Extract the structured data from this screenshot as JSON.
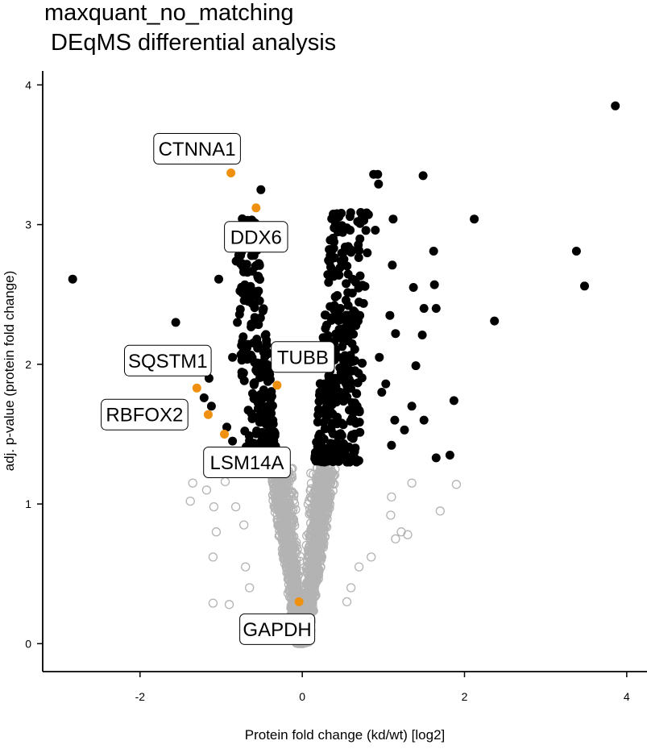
{
  "chart_data": {
    "type": "scatter",
    "title_line1": "maxquant_no_matching",
    "title_line2": " DEqMS differential analysis",
    "xlabel": "Protein fold change (kd/wt) [log2]",
    "ylabel": "adj. p-value (protein fold change)",
    "xlim": [
      -3.2,
      4.25
    ],
    "ylim": [
      -0.2,
      4.1
    ],
    "x_ticks": [
      -2,
      0,
      2,
      4
    ],
    "y_ticks": [
      0,
      1,
      2,
      3,
      4
    ],
    "grid": false,
    "legend": "none",
    "colors": {
      "significant": "#000000",
      "not_significant": "#b3b3b3",
      "highlight": "#f0900f",
      "axis": "#000000"
    },
    "significance_threshold": 1.3,
    "series": [
      {
        "kind": "significant",
        "points": [
          [
            3.86,
            3.85
          ],
          [
            3.38,
            2.81
          ],
          [
            3.48,
            2.56
          ],
          [
            2.12,
            3.04
          ],
          [
            2.37,
            2.31
          ],
          [
            1.87,
            1.74
          ],
          [
            1.62,
            2.81
          ],
          [
            1.63,
            2.57
          ],
          [
            1.82,
            1.35
          ],
          [
            1.65,
            1.33
          ],
          [
            1.49,
            3.35
          ],
          [
            1.5,
            2.4
          ],
          [
            1.65,
            2.4
          ],
          [
            1.37,
            2.55
          ],
          [
            1.4,
            1.99
          ],
          [
            1.35,
            1.7
          ],
          [
            1.5,
            1.6
          ],
          [
            1.26,
            1.53
          ],
          [
            1.48,
            2.21
          ],
          [
            1.12,
            3.04
          ],
          [
            1.11,
            2.71
          ],
          [
            0.93,
            3.36
          ],
          [
            0.88,
            3.36
          ],
          [
            0.94,
            3.29
          ],
          [
            0.9,
            2.96
          ],
          [
            1.08,
            2.35
          ],
          [
            1.15,
            2.22
          ],
          [
            1.03,
            1.86
          ],
          [
            1.1,
            1.42
          ],
          [
            1.14,
            1.6
          ],
          [
            0.95,
            2.05
          ],
          [
            0.98,
            1.8
          ],
          [
            -2.83,
            2.61
          ],
          [
            -1.56,
            2.3
          ],
          [
            -1.03,
            2.61
          ],
          [
            -0.51,
            3.25
          ],
          [
            -0.86,
            2.05
          ],
          [
            -0.8,
            2.3
          ],
          [
            -1.12,
            1.7
          ],
          [
            -1.15,
            1.9
          ],
          [
            -0.93,
            1.55
          ],
          [
            -0.86,
            1.45
          ],
          [
            -1.21,
            1.76
          ]
        ]
      },
      {
        "kind": "not_significant",
        "points": [
          [
            1.9,
            1.14
          ],
          [
            1.7,
            0.95
          ],
          [
            1.3,
            0.78
          ],
          [
            1.22,
            0.8
          ],
          [
            1.15,
            0.75
          ],
          [
            1.09,
            0.92
          ],
          [
            0.85,
            0.62
          ],
          [
            0.7,
            0.55
          ],
          [
            0.6,
            0.4
          ],
          [
            0.55,
            0.3
          ],
          [
            -1.38,
            1.02
          ],
          [
            -1.18,
            1.1
          ],
          [
            -1.09,
            0.98
          ],
          [
            -1.06,
            0.8
          ],
          [
            -1.1,
            0.62
          ],
          [
            -0.9,
            0.28
          ],
          [
            -1.1,
            0.29
          ],
          [
            -0.7,
            0.55
          ],
          [
            -0.65,
            0.4
          ],
          [
            -0.72,
            0.85
          ],
          [
            -0.82,
            0.98
          ],
          [
            -0.05,
            0.0
          ],
          [
            0.0,
            0.02
          ],
          [
            1.1,
            1.05
          ],
          [
            1.35,
            1.15
          ],
          [
            -1.35,
            1.15
          ],
          [
            -0.95,
            1.16
          ]
        ]
      },
      {
        "kind": "highlight",
        "points": [
          [
            -0.88,
            3.37
          ],
          [
            -0.57,
            3.12
          ],
          [
            -0.31,
            1.85
          ],
          [
            -1.3,
            1.83
          ],
          [
            -1.16,
            1.64
          ],
          [
            -0.96,
            1.5
          ],
          [
            -0.04,
            0.3
          ]
        ]
      }
    ],
    "labels": [
      {
        "text": "CTNNA1",
        "x": -0.88,
        "y": 3.37
      },
      {
        "text": "DDX6",
        "x": -0.57,
        "y": 3.12
      },
      {
        "text": "TUBB",
        "x": -0.31,
        "y": 1.85
      },
      {
        "text": "SQSTM1",
        "x": -1.3,
        "y": 1.83
      },
      {
        "text": "RBFOX2",
        "x": -1.16,
        "y": 1.64
      },
      {
        "text": "LSM14A",
        "x": -0.96,
        "y": 1.5
      },
      {
        "text": "GAPDH",
        "x": -0.04,
        "y": 0.3
      }
    ]
  }
}
